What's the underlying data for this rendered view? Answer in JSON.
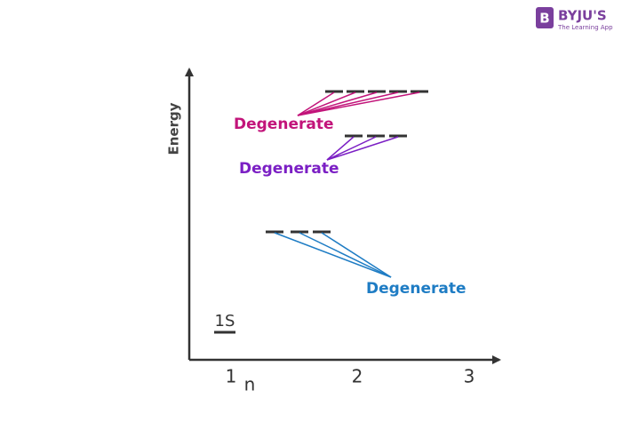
{
  "logo": {
    "mark": "B",
    "name": "BYJU'S",
    "tagline": "The Learning App"
  },
  "axes": {
    "y_label": "Energy",
    "x_label": "n",
    "x_ticks": [
      "1",
      "2",
      "3"
    ]
  },
  "ground_state": "1S",
  "annotations": [
    "Degenerate",
    "Degenerate",
    "Degenerate"
  ]
}
